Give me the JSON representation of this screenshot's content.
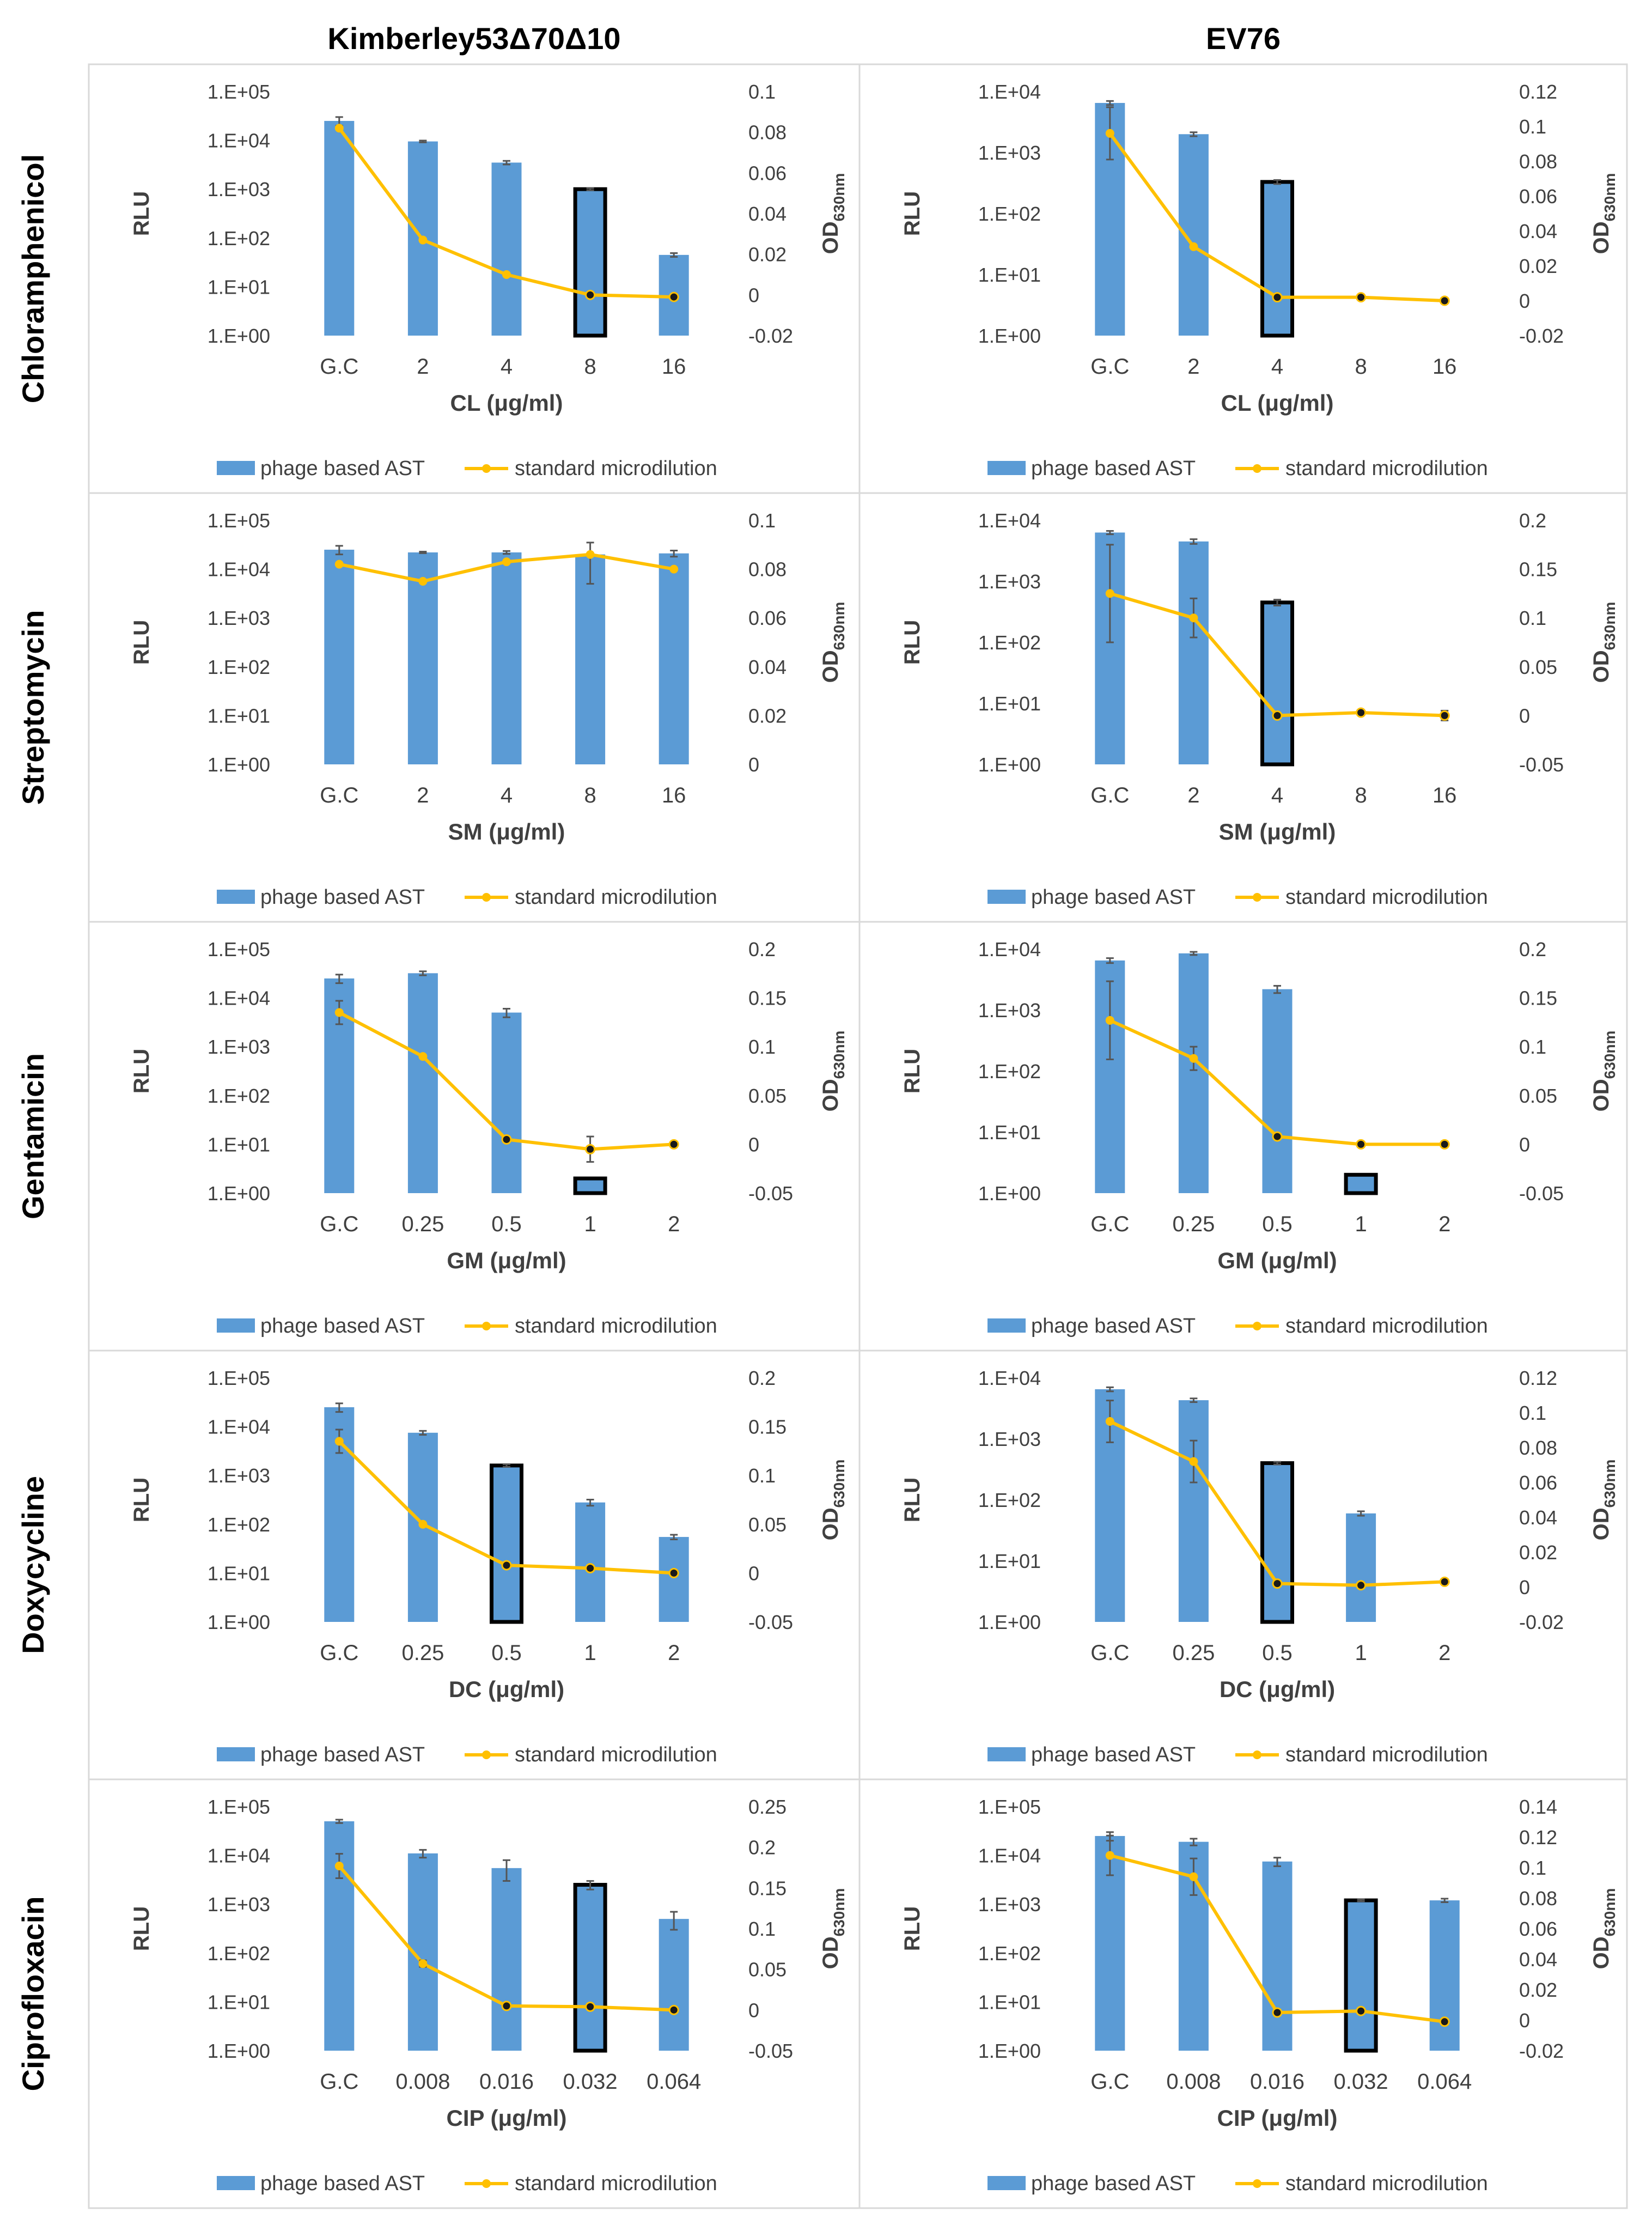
{
  "figure": {
    "column_titles": [
      "Kimberley53Δ70Δ10",
      "EV76"
    ],
    "row_titles": [
      "Chloramphenicol",
      "Streptomycin",
      "Gentamicin",
      "Doxycycline",
      "Ciprofloxacin"
    ],
    "colors": {
      "bar": "#5b9bd5",
      "line": "#ffc000",
      "marker": "#1a1a1a",
      "highlight": "#000000",
      "grid_border": "#d9d9d9"
    }
  },
  "chart_data": [
    {
      "type": "bar+line",
      "strain": "Kimberley53Δ70Δ10",
      "antibiotic": "Chloramphenicol",
      "categories": [
        "G.C",
        "2",
        "4",
        "8",
        "16"
      ],
      "xlabel": "CL (μg/ml)",
      "ylabel": "RLU",
      "y2label": "OD",
      "ylog": [
        0,
        5
      ],
      "y2lim": [
        -0.02,
        0.1
      ],
      "y2step": 0.02,
      "series": [
        {
          "name": "phage based AST",
          "type": "bar",
          "values": [
            25000,
            9500,
            3500,
            1000,
            45
          ],
          "err": [
            5000,
            400,
            300,
            50,
            4
          ]
        },
        {
          "name": "standard microdilution",
          "type": "line",
          "values": [
            0.082,
            0.027,
            0.01,
            0.0,
            -0.001
          ],
          "err": [
            0,
            0,
            0,
            0,
            0
          ]
        }
      ],
      "highlight_index": 3,
      "marker_from": 3
    },
    {
      "type": "bar+line",
      "strain": "EV76",
      "antibiotic": "Chloramphenicol",
      "categories": [
        "G.C",
        "2",
        "4",
        "8",
        "16"
      ],
      "xlabel": "CL (μg/ml)",
      "ylabel": "RLU",
      "y2label": "OD",
      "ylog": [
        0,
        4
      ],
      "y2lim": [
        -0.02,
        0.12
      ],
      "y2step": 0.02,
      "series": [
        {
          "name": "phage based AST",
          "type": "bar",
          "values": [
            6500,
            2000,
            330,
            null,
            null
          ],
          "err": [
            500,
            150,
            25,
            0,
            0
          ]
        },
        {
          "name": "standard microdilution",
          "type": "line",
          "values": [
            0.096,
            0.031,
            0.002,
            0.002,
            0.0
          ],
          "err": [
            0.015,
            0,
            0,
            0,
            0
          ]
        }
      ],
      "highlight_index": 2,
      "marker_from": 2
    },
    {
      "type": "bar+line",
      "strain": "Kimberley53Δ70Δ10",
      "antibiotic": "Streptomycin",
      "categories": [
        "G.C",
        "2",
        "4",
        "8",
        "16"
      ],
      "xlabel": "SM (μg/ml)",
      "ylabel": "RLU",
      "y2label": "OD",
      "ylog": [
        0,
        5
      ],
      "y2lim": [
        0,
        0.1
      ],
      "y2step": 0.02,
      "series": [
        {
          "name": "phage based AST",
          "type": "bar",
          "values": [
            25000,
            22000,
            22000,
            20000,
            21000
          ],
          "err": [
            5000,
            800,
            1500,
            15000,
            3000
          ]
        },
        {
          "name": "standard microdilution",
          "type": "line",
          "values": [
            0.082,
            0.075,
            0.083,
            0.086,
            0.08
          ],
          "err": [
            0,
            0,
            0,
            0,
            0
          ]
        }
      ],
      "highlight_index": null,
      "marker_from": null
    },
    {
      "type": "bar+line",
      "strain": "EV76",
      "antibiotic": "Streptomycin",
      "categories": [
        "G.C",
        "2",
        "4",
        "8",
        "16"
      ],
      "xlabel": "SM (μg/ml)",
      "ylabel": "RLU",
      "y2label": "OD",
      "ylog": [
        0,
        4
      ],
      "y2lim": [
        -0.05,
        0.2
      ],
      "y2step": 0.05,
      "series": [
        {
          "name": "phage based AST",
          "type": "bar",
          "values": [
            6300,
            4500,
            450,
            null,
            null
          ],
          "err": [
            400,
            400,
            50,
            0,
            0
          ]
        },
        {
          "name": "standard microdilution",
          "type": "line",
          "values": [
            0.125,
            0.1,
            0.0,
            0.003,
            0.0
          ],
          "err": [
            0.05,
            0.02,
            0,
            0,
            0.005
          ]
        }
      ],
      "highlight_index": 2,
      "marker_from": 2
    },
    {
      "type": "bar+line",
      "strain": "Kimberley53Δ70Δ10",
      "antibiotic": "Gentamicin",
      "categories": [
        "G.C",
        "0.25",
        "0.5",
        "1",
        "2"
      ],
      "xlabel": "GM (μg/ml)",
      "ylabel": "RLU",
      "y2label": "OD",
      "ylog": [
        0,
        5
      ],
      "y2lim": [
        -0.05,
        0.2
      ],
      "y2step": 0.05,
      "series": [
        {
          "name": "phage based AST",
          "type": "bar",
          "values": [
            25000,
            32000,
            5000,
            2,
            null
          ],
          "err": [
            5000,
            3000,
            1000,
            0,
            0
          ]
        },
        {
          "name": "standard microdilution",
          "type": "line",
          "values": [
            0.135,
            0.09,
            0.005,
            -0.005,
            0.0
          ],
          "err": [
            0.012,
            0,
            0,
            0.013,
            0
          ]
        }
      ],
      "highlight_index": 3,
      "marker_from": 2
    },
    {
      "type": "bar+line",
      "strain": "EV76",
      "antibiotic": "Gentamicin",
      "categories": [
        "G.C",
        "0.25",
        "0.5",
        "1",
        "2"
      ],
      "xlabel": "GM (μg/ml)",
      "ylabel": "RLU",
      "y2label": "OD",
      "ylog": [
        0,
        4
      ],
      "y2lim": [
        -0.05,
        0.2
      ],
      "y2step": 0.05,
      "series": [
        {
          "name": "phage based AST",
          "type": "bar",
          "values": [
            6500,
            8500,
            2200,
            2,
            null
          ],
          "err": [
            600,
            500,
            300,
            0,
            0
          ]
        },
        {
          "name": "standard microdilution",
          "type": "line",
          "values": [
            0.127,
            0.088,
            0.008,
            0.0,
            0.0
          ],
          "err": [
            0.04,
            0.012,
            0,
            0,
            0
          ]
        }
      ],
      "highlight_index": 3,
      "marker_from": 2
    },
    {
      "type": "bar+line",
      "strain": "Kimberley53Δ70Δ10",
      "antibiotic": "Doxycycline",
      "categories": [
        "G.C",
        "0.25",
        "0.5",
        "1",
        "2"
      ],
      "xlabel": "DC (μg/ml)",
      "ylabel": "RLU",
      "y2label": "OD",
      "ylog": [
        0,
        5
      ],
      "y2lim": [
        -0.05,
        0.2
      ],
      "y2step": 0.05,
      "series": [
        {
          "name": "phage based AST",
          "type": "bar",
          "values": [
            25000,
            7500,
            1600,
            280,
            55
          ],
          "err": [
            5000,
            700,
            100,
            40,
            6
          ]
        },
        {
          "name": "standard microdilution",
          "type": "line",
          "values": [
            0.135,
            0.05,
            0.008,
            0.005,
            0.0
          ],
          "err": [
            0.012,
            0,
            0,
            0,
            0
          ]
        }
      ],
      "highlight_index": 2,
      "marker_from": 2
    },
    {
      "type": "bar+line",
      "strain": "EV76",
      "antibiotic": "Doxycycline",
      "categories": [
        "G.C",
        "0.25",
        "0.5",
        "1",
        "2"
      ],
      "xlabel": "DC (μg/ml)",
      "ylabel": "RLU",
      "y2label": "OD",
      "ylog": [
        0,
        4
      ],
      "y2lim": [
        -0.02,
        0.12
      ],
      "y2step": 0.02,
      "series": [
        {
          "name": "phage based AST",
          "type": "bar",
          "values": [
            6500,
            4300,
            400,
            60,
            null
          ],
          "err": [
            500,
            300,
            20,
            5,
            0
          ]
        },
        {
          "name": "standard microdilution",
          "type": "line",
          "values": [
            0.095,
            0.072,
            0.002,
            0.001,
            0.003
          ],
          "err": [
            0.012,
            0.012,
            0,
            0,
            0
          ]
        }
      ],
      "highlight_index": 2,
      "marker_from": 2
    },
    {
      "type": "bar+line",
      "strain": "Kimberley53Δ70Δ10",
      "antibiotic": "Ciprofloxacin",
      "categories": [
        "G.C",
        "0.008",
        "0.016",
        "0.032",
        "0.064"
      ],
      "xlabel": "CIP (μg/ml)",
      "ylabel": "RLU",
      "y2label": "OD",
      "ylog": [
        0,
        5
      ],
      "y2lim": [
        -0.05,
        0.25
      ],
      "y2step": 0.05,
      "series": [
        {
          "name": "phage based AST",
          "type": "bar",
          "values": [
            50000,
            11000,
            5500,
            2500,
            500
          ],
          "err": [
            4000,
            2000,
            2500,
            500,
            200
          ]
        },
        {
          "name": "standard microdilution",
          "type": "line",
          "values": [
            0.177,
            0.057,
            0.005,
            0.004,
            0.0
          ],
          "err": [
            0.015,
            0.004,
            0,
            0,
            0
          ]
        }
      ],
      "highlight_index": 3,
      "marker_from": 2
    },
    {
      "type": "bar+line",
      "strain": "EV76",
      "antibiotic": "Ciprofloxacin",
      "categories": [
        "G.C",
        "0.008",
        "0.016",
        "0.032",
        "0.064"
      ],
      "xlabel": "CIP (μg/ml)",
      "ylabel": "RLU",
      "y2label": "OD",
      "ylog": [
        0,
        5
      ],
      "y2lim": [
        -0.02,
        0.14
      ],
      "y2step": 0.02,
      "series": [
        {
          "name": "phage based AST",
          "type": "bar",
          "values": [
            25000,
            19000,
            7500,
            1200,
            1200
          ],
          "err": [
            5000,
            3000,
            1500,
            50,
            100
          ]
        },
        {
          "name": "standard microdilution",
          "type": "line",
          "values": [
            0.108,
            0.094,
            0.005,
            0.006,
            -0.001
          ],
          "err": [
            0.013,
            0.012,
            0,
            0,
            0
          ]
        }
      ],
      "highlight_index": 3,
      "marker_from": 2
    }
  ],
  "legend": {
    "bar_label": "phage based AST",
    "line_label": "standard microdilution"
  },
  "axis_text": {
    "y2_label_main": "OD",
    "y2_label_sub": "630nm"
  }
}
